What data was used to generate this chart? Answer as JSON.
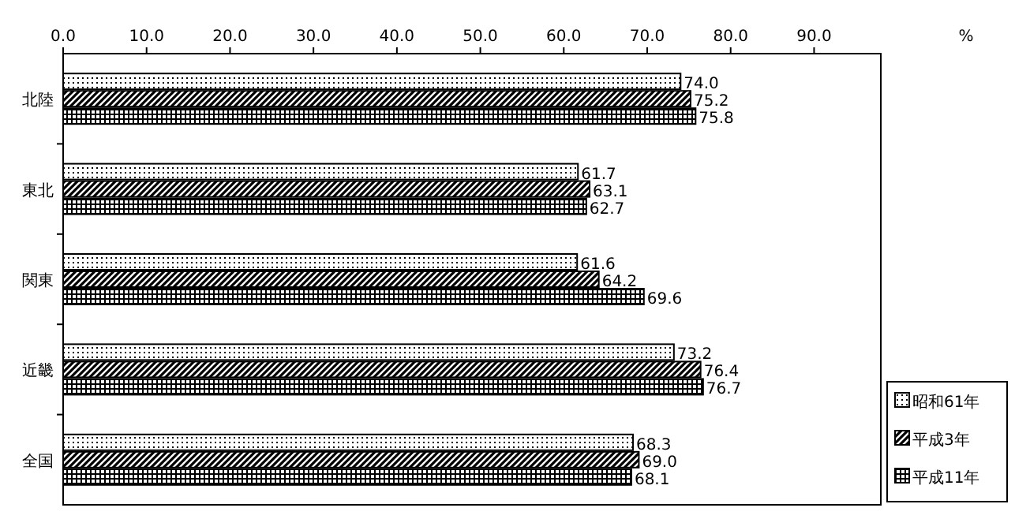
{
  "chart_data": {
    "type": "bar",
    "orientation": "horizontal",
    "xlabel": "%",
    "categories": [
      "北陸",
      "東北",
      "関東",
      "近畿",
      "全国"
    ],
    "series": [
      {
        "name": "昭和61年",
        "color": "#000000",
        "values": [
          74.0,
          61.7,
          61.6,
          73.2,
          68.3
        ],
        "value_labels": [
          "74.0",
          "61.7",
          "61.6",
          "73.2",
          "68.3"
        ]
      },
      {
        "name": "平成3年",
        "color": "#000000",
        "values": [
          75.2,
          63.1,
          64.2,
          76.4,
          69.0
        ],
        "value_labels": [
          "75.2",
          "63.1",
          "64.2",
          "76.4",
          "69.0"
        ]
      },
      {
        "name": "平成11年",
        "color": "#000000",
        "values": [
          75.8,
          62.7,
          69.6,
          76.7,
          68.1
        ],
        "value_labels": [
          "75.8",
          "62.7",
          "69.6",
          "76.7",
          "68.1"
        ]
      }
    ],
    "xlim": [
      0,
      98
    ],
    "xticks": [
      {
        "value": 0,
        "label": "0.0"
      },
      {
        "value": 10,
        "label": "10.0"
      },
      {
        "value": 20,
        "label": "20.0"
      },
      {
        "value": 30,
        "label": "30.0"
      },
      {
        "value": 40,
        "label": "40.0"
      },
      {
        "value": 50,
        "label": "50.0"
      },
      {
        "value": 60,
        "label": "60.0"
      },
      {
        "value": 70,
        "label": "70.0"
      },
      {
        "value": 80,
        "label": "80.0"
      },
      {
        "value": 90,
        "label": "90.0"
      }
    ],
    "legend": "bottom right"
  }
}
